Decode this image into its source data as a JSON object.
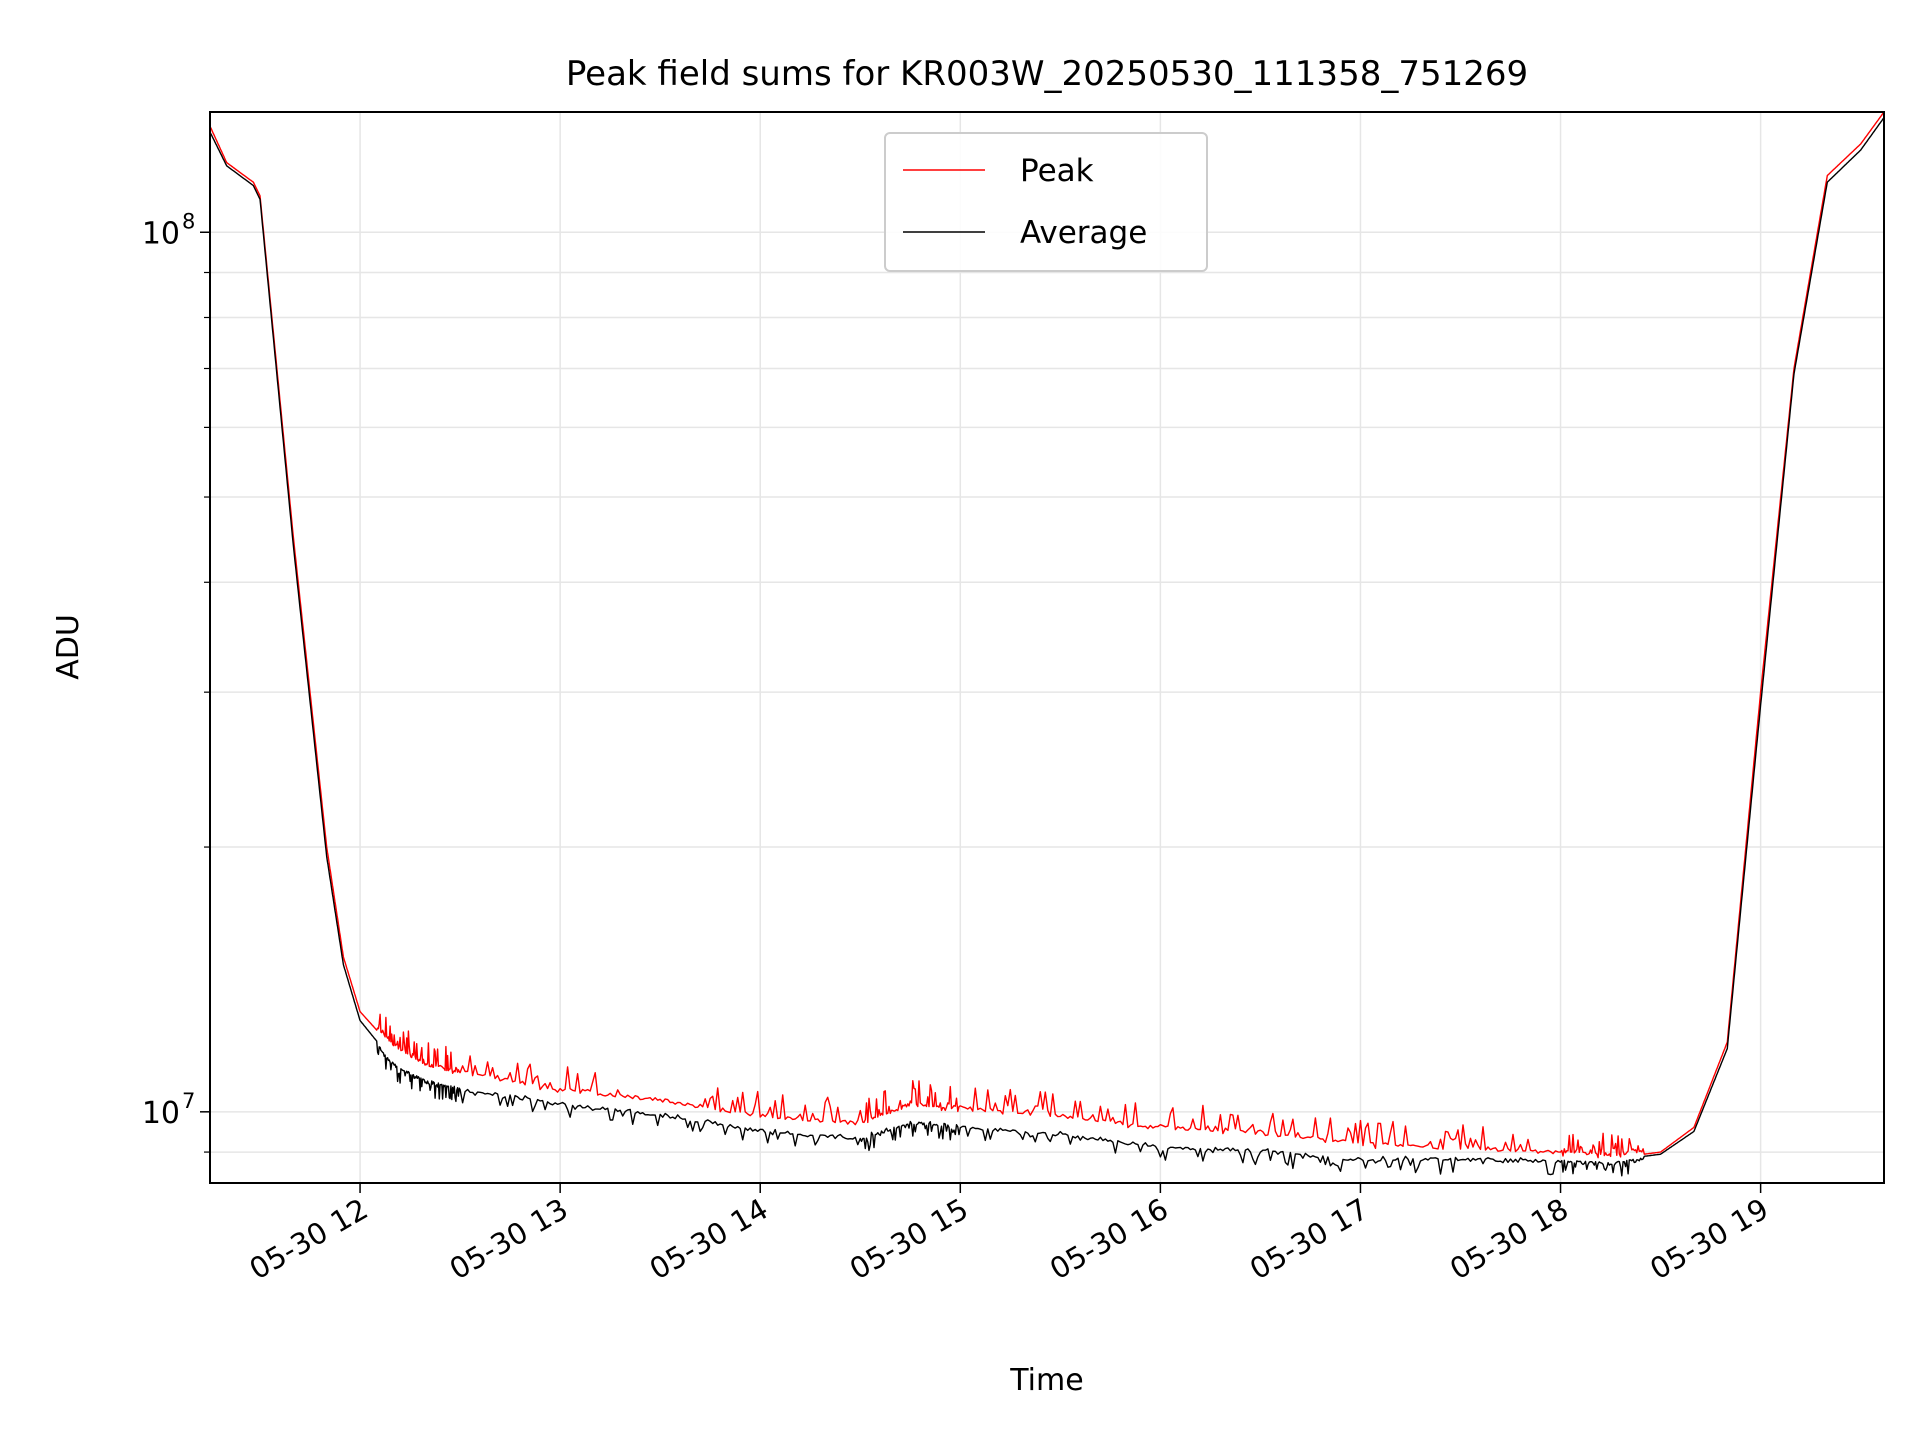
{
  "chart_data": {
    "type": "line",
    "title": "Peak field sums for KR003W_20250530_111358_751269",
    "xlabel": "Time",
    "ylabel": "ADU",
    "yscale": "log",
    "grid": true,
    "legend": "upper center",
    "xlim": [
      "2025-05-30 11:15",
      "2025-05-30 19:37"
    ],
    "ylim": [
      8300000,
      137000000
    ],
    "xticks": [
      "05-30 12",
      "05-30 13",
      "05-30 14",
      "05-30 15",
      "05-30 16",
      "05-30 17",
      "05-30 18",
      "05-30 19"
    ],
    "yticks": [
      {
        "base": "10",
        "exp": "7",
        "value": 10000000
      },
      {
        "base": "10",
        "exp": "8",
        "value": 100000000
      }
    ],
    "colors": {
      "peak": "#ff0000",
      "average": "#000000"
    },
    "series": [
      {
        "name": "Peak",
        "x": [
          "2025-05-30 11:15",
          "2025-05-30 11:20",
          "2025-05-30 11:28",
          "2025-05-30 11:30",
          "2025-05-30 11:40",
          "2025-05-30 11:50",
          "2025-05-30 11:55",
          "2025-05-30 12:00",
          "2025-05-30 12:10",
          "2025-05-30 12:20",
          "2025-05-30 12:30",
          "2025-05-30 13:00",
          "2025-05-30 13:30",
          "2025-05-30 14:00",
          "2025-05-30 14:30",
          "2025-05-30 14:45",
          "2025-05-30 15:00",
          "2025-05-30 15:30",
          "2025-05-30 16:00",
          "2025-05-30 16:30",
          "2025-05-30 17:00",
          "2025-05-30 17:30",
          "2025-05-30 18:00",
          "2025-05-30 18:15",
          "2025-05-30 18:30",
          "2025-05-30 18:40",
          "2025-05-30 18:50",
          "2025-05-30 19:00",
          "2025-05-30 19:10",
          "2025-05-30 19:20",
          "2025-05-30 19:30",
          "2025-05-30 19:37"
        ],
        "y": [
          132000000,
          120000000,
          114000000,
          110000000,
          45000000,
          20000000,
          15000000,
          13000000,
          11800000,
          11200000,
          11000000,
          10500000,
          10200000,
          9800000,
          9600000,
          10100000,
          10000000,
          9800000,
          9500000,
          9400000,
          9100000,
          9000000,
          8900000,
          8850000,
          9000000,
          9600000,
          12000000,
          30000000,
          70000000,
          116000000,
          126000000,
          137000000
        ]
      },
      {
        "name": "Average",
        "x": [
          "2025-05-30 11:15",
          "2025-05-30 11:20",
          "2025-05-30 11:28",
          "2025-05-30 11:30",
          "2025-05-30 11:40",
          "2025-05-30 11:50",
          "2025-05-30 11:55",
          "2025-05-30 12:00",
          "2025-05-30 12:10",
          "2025-05-30 12:20",
          "2025-05-30 12:30",
          "2025-05-30 13:00",
          "2025-05-30 13:30",
          "2025-05-30 14:00",
          "2025-05-30 14:30",
          "2025-05-30 14:45",
          "2025-05-30 15:00",
          "2025-05-30 15:30",
          "2025-05-30 16:00",
          "2025-05-30 16:30",
          "2025-05-30 17:00",
          "2025-05-30 17:30",
          "2025-05-30 18:00",
          "2025-05-30 18:15",
          "2025-05-30 18:30",
          "2025-05-30 18:40",
          "2025-05-30 18:50",
          "2025-05-30 19:00",
          "2025-05-30 19:10",
          "2025-05-30 19:20",
          "2025-05-30 19:30",
          "2025-05-30 19:37"
        ],
        "y": [
          130000000,
          119000000,
          113000000,
          109000000,
          44000000,
          19500000,
          14700000,
          12700000,
          11400000,
          10900000,
          10700000,
          10300000,
          10000000,
          9600000,
          9400000,
          9800000,
          9700000,
          9500000,
          9200000,
          9100000,
          8900000,
          8900000,
          8850000,
          8800000,
          8950000,
          9500000,
          11800000,
          29000000,
          69000000,
          114000000,
          124000000,
          135000000
        ]
      }
    ]
  }
}
